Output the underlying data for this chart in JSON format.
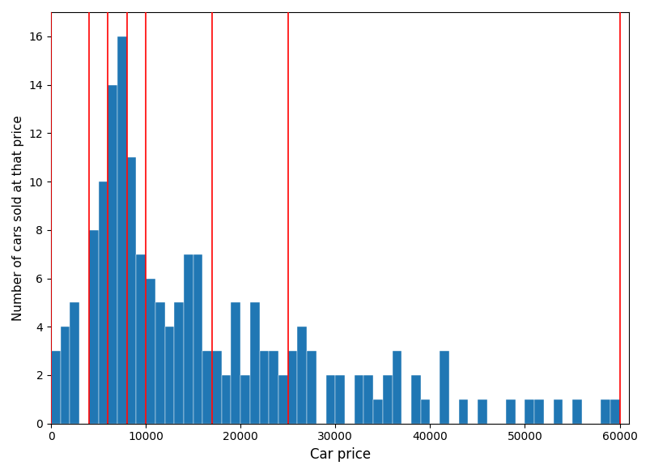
{
  "title": "",
  "xlabel": "Car price",
  "ylabel": "Number of cars sold at that price",
  "bar_color": "#2077b4",
  "red_lines": [
    0,
    4000,
    6000,
    8000,
    10000,
    17000,
    25000,
    60000
  ],
  "xlim": [
    0,
    61000
  ],
  "ylim": [
    0,
    17
  ],
  "yticks": [
    0,
    2,
    4,
    6,
    8,
    10,
    12,
    14,
    16
  ],
  "xticks": [
    0,
    10000,
    20000,
    30000,
    40000,
    50000,
    60000
  ],
  "bin_width": 1000,
  "bar_heights": [
    3,
    4,
    5,
    0,
    8,
    10,
    14,
    16,
    11,
    7,
    6,
    5,
    4,
    5,
    7,
    7,
    3,
    3,
    2,
    5,
    2,
    5,
    3,
    3,
    2,
    3,
    4,
    3,
    0,
    2,
    2,
    0,
    2,
    2,
    1,
    2,
    3,
    0,
    2,
    1,
    0,
    3,
    0,
    1,
    0,
    1,
    0,
    0,
    1,
    0,
    1,
    1,
    0,
    1,
    0,
    1,
    0,
    0,
    1,
    1
  ]
}
